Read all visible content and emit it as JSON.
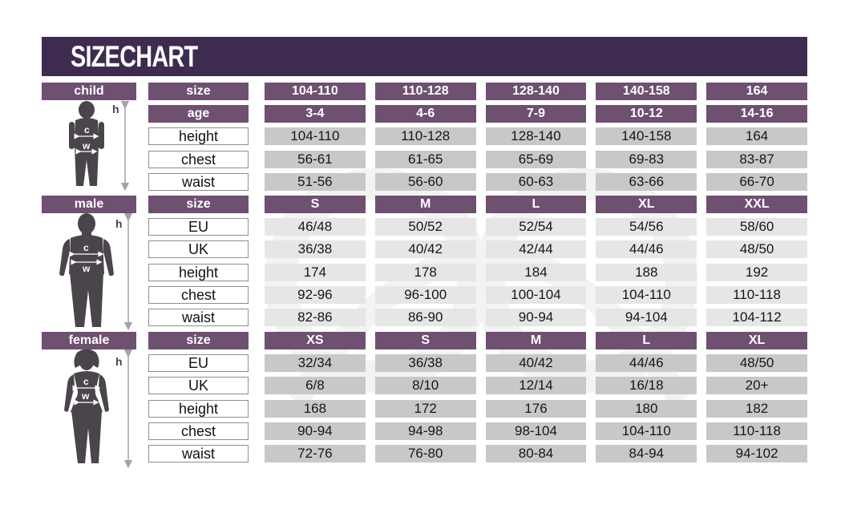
{
  "title": "SIZE CHART",
  "colors": {
    "banner": "#3E2C50",
    "header_cell": "#6E5071",
    "row_gray_dark": "#C9C8C9",
    "row_gray_light": "#E7E6E7",
    "figure": "#4A444B",
    "arrow": "#A5A1AA"
  },
  "figure_annotations": {
    "height": "h",
    "chest": "c",
    "waist": "w"
  },
  "sections": [
    {
      "name": "child",
      "label": "child",
      "cell_bg": "#C9C8C9",
      "header_rows": [
        {
          "label": "size",
          "values": [
            "104-110",
            "110-128",
            "128-140",
            "140-158",
            "164"
          ]
        },
        {
          "label": "age",
          "values": [
            "3-4",
            "4-6",
            "7-9",
            "10-12",
            "14-16"
          ]
        }
      ],
      "data_rows": [
        {
          "label": "height",
          "values": [
            "104-110",
            "110-128",
            "128-140",
            "140-158",
            "164"
          ]
        },
        {
          "label": "chest",
          "values": [
            "56-61",
            "61-65",
            "65-69",
            "69-83",
            "83-87"
          ]
        },
        {
          "label": "waist",
          "values": [
            "51-56",
            "56-60",
            "60-63",
            "63-66",
            "66-70"
          ]
        }
      ]
    },
    {
      "name": "male",
      "label": "male",
      "cell_bg": "#E7E6E7",
      "header_rows": [
        {
          "label": "size",
          "values": [
            "S",
            "M",
            "L",
            "XL",
            "XXL"
          ]
        }
      ],
      "data_rows": [
        {
          "label": "EU",
          "values": [
            "46/48",
            "50/52",
            "52/54",
            "54/56",
            "58/60"
          ]
        },
        {
          "label": "UK",
          "values": [
            "36/38",
            "40/42",
            "42/44",
            "44/46",
            "48/50"
          ]
        },
        {
          "label": "height",
          "values": [
            "174",
            "178",
            "184",
            "188",
            "192"
          ]
        },
        {
          "label": "chest",
          "values": [
            "92-96",
            "96-100",
            "100-104",
            "104-110",
            "110-118"
          ]
        },
        {
          "label": "waist",
          "values": [
            "82-86",
            "86-90",
            "90-94",
            "94-104",
            "104-112"
          ]
        }
      ]
    },
    {
      "name": "female",
      "label": "female",
      "cell_bg": "#C9C8C9",
      "header_rows": [
        {
          "label": "size",
          "values": [
            "XS",
            "S",
            "M",
            "L",
            "XL"
          ]
        }
      ],
      "data_rows": [
        {
          "label": "EU",
          "values": [
            "32/34",
            "36/38",
            "40/42",
            "44/46",
            "48/50"
          ]
        },
        {
          "label": "UK",
          "values": [
            "6/8",
            "8/10",
            "12/14",
            "16/18",
            "20+"
          ]
        },
        {
          "label": "height",
          "values": [
            "168",
            "172",
            "176",
            "180",
            "182"
          ]
        },
        {
          "label": "chest",
          "values": [
            "90-94",
            "94-98",
            "98-104",
            "104-110",
            "110-118"
          ]
        },
        {
          "label": "waist",
          "values": [
            "72-76",
            "76-80",
            "80-84",
            "84-94",
            "94-102"
          ]
        }
      ]
    }
  ],
  "chart_data": [
    {
      "type": "table",
      "title": "child",
      "header_rows": [
        [
          "size",
          "104-110",
          "110-128",
          "128-140",
          "140-158",
          "164"
        ],
        [
          "age",
          "3-4",
          "4-6",
          "7-9",
          "10-12",
          "14-16"
        ]
      ],
      "rows": [
        [
          "height",
          "104-110",
          "110-128",
          "128-140",
          "140-158",
          "164"
        ],
        [
          "chest",
          "56-61",
          "61-65",
          "65-69",
          "69-83",
          "83-87"
        ],
        [
          "waist",
          "51-56",
          "56-60",
          "60-63",
          "63-66",
          "66-70"
        ]
      ]
    },
    {
      "type": "table",
      "title": "male",
      "header_rows": [
        [
          "size",
          "S",
          "M",
          "L",
          "XL",
          "XXL"
        ]
      ],
      "rows": [
        [
          "EU",
          "46/48",
          "50/52",
          "52/54",
          "54/56",
          "58/60"
        ],
        [
          "UK",
          "36/38",
          "40/42",
          "42/44",
          "44/46",
          "48/50"
        ],
        [
          "height",
          "174",
          "178",
          "184",
          "188",
          "192"
        ],
        [
          "chest",
          "92-96",
          "96-100",
          "100-104",
          "104-110",
          "110-118"
        ],
        [
          "waist",
          "82-86",
          "86-90",
          "90-94",
          "94-104",
          "104-112"
        ]
      ]
    },
    {
      "type": "table",
      "title": "female",
      "header_rows": [
        [
          "size",
          "XS",
          "S",
          "M",
          "L",
          "XL"
        ]
      ],
      "rows": [
        [
          "EU",
          "32/34",
          "36/38",
          "40/42",
          "44/46",
          "48/50"
        ],
        [
          "UK",
          "6/8",
          "8/10",
          "12/14",
          "16/18",
          "20+"
        ],
        [
          "height",
          "168",
          "172",
          "176",
          "180",
          "182"
        ],
        [
          "chest",
          "90-94",
          "94-98",
          "98-104",
          "104-110",
          "110-118"
        ],
        [
          "waist",
          "72-76",
          "76-80",
          "80-84",
          "84-94",
          "94-102"
        ]
      ]
    }
  ]
}
